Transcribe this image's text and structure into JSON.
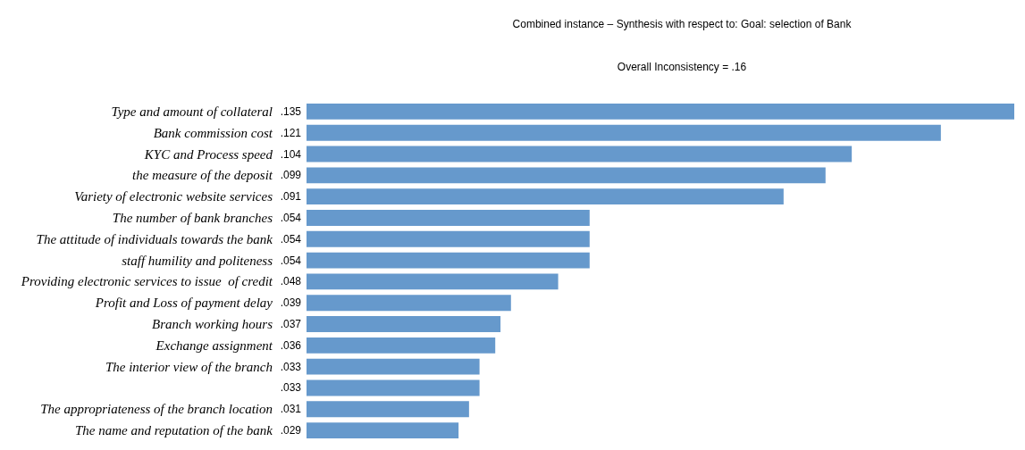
{
  "chart_data": {
    "type": "bar",
    "orientation": "horizontal",
    "title": "Combined instance – Synthesis with respect to: Goal: selection of Bank",
    "subtitle": "Overall Inconsistency = .16",
    "categories": [
      "Type and amount of collateral",
      "Bank commission cost",
      "KYC and Process speed",
      "the measure of the deposit",
      "Variety of electronic website services",
      "The number of bank branches",
      "The attitude of individuals towards the bank",
      "staff humility and politeness",
      "Providing electronic services to issue  of credit",
      "Profit and Loss of payment delay",
      "Branch working hours",
      "Exchange assignment",
      "The interior view of the branch",
      null,
      "The appropriateness of the branch location",
      "The name and reputation of the bank"
    ],
    "values": [
      0.135,
      0.121,
      0.104,
      0.099,
      0.091,
      0.054,
      0.054,
      0.054,
      0.048,
      0.039,
      0.037,
      0.036,
      0.033,
      0.033,
      0.031,
      0.029
    ],
    "value_labels": [
      ".135",
      ".121",
      ".104",
      ".099",
      ".091",
      ".054",
      ".054",
      ".054",
      ".048",
      ".039",
      ".037",
      ".036",
      ".033",
      ".033",
      ".031",
      ".029"
    ],
    "color": "#6699cc"
  }
}
